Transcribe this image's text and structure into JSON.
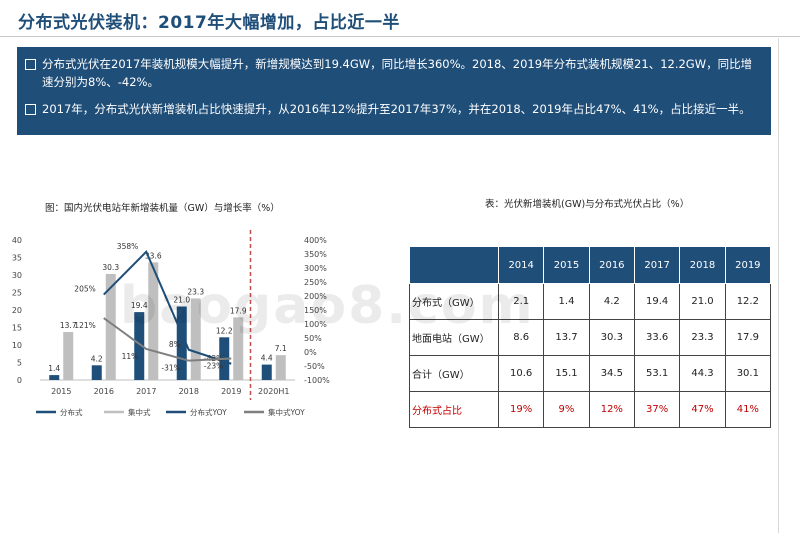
{
  "title": "分布式光伏装机：2017年大幅增加，占比近一半",
  "summary": [
    "分布式光伏在2017年装机规模大幅提升，新增规模达到19.4GW，同比增长360%。2018、2019年分布式装机规模21、12.2GW，同比增速分别为8%、-42%。",
    "2017年，分布式光伏新增装机占比快速提升，从2016年12%提升至2017年37%，并在2018、2019年占比47%、41%，占比接近一半。"
  ],
  "watermark": "baogao8.com",
  "colors": {
    "dist": "#1f4e79",
    "central": "#bfbfbf",
    "dist_yoy": "#1f4e79",
    "central_yoy": "#7f7f7f",
    "divider": "#c0504d",
    "ratio": "#c00000"
  },
  "chart_data": {
    "type": "bar",
    "title": "图：国内光伏电站年新增装机量（GW）与增长率（%）",
    "categories": [
      "2015",
      "2016",
      "2017",
      "2018",
      "2019",
      "2020H1"
    ],
    "ylim": [
      0,
      40
    ],
    "y_ticks": [
      "0",
      "5",
      "10",
      "15",
      "20",
      "25",
      "30",
      "35",
      "40"
    ],
    "y2lim": [
      -100,
      400
    ],
    "y2_ticks": [
      "-100%",
      "-50%",
      "0%",
      "50%",
      "100%",
      "150%",
      "200%",
      "250%",
      "300%",
      "350%",
      "400%"
    ],
    "series": [
      {
        "name": "分布式",
        "type": "bar",
        "values": [
          1.4,
          4.2,
          19.4,
          21.0,
          12.2,
          4.4
        ],
        "labels": [
          "1.4",
          "4.2",
          "19.4",
          "21.0",
          "12.2",
          "4.4"
        ]
      },
      {
        "name": "集中式",
        "type": "bar",
        "values": [
          13.7,
          30.3,
          33.6,
          23.3,
          17.9,
          7.1
        ],
        "labels": [
          "13.7",
          "30.3",
          "33.6",
          "23.3",
          "17.9",
          "7.1"
        ]
      },
      {
        "name": "分布式YOY",
        "type": "line",
        "axis": "right",
        "values": [
          null,
          205,
          358,
          8,
          -42,
          null
        ],
        "labels": [
          "",
          "205%",
          "358%",
          "8%",
          "-42%",
          ""
        ]
      },
      {
        "name": "集中式YOY",
        "type": "line",
        "axis": "right",
        "values": [
          null,
          121,
          11,
          -31,
          -23,
          null
        ],
        "labels": [
          "",
          "121%",
          "11%",
          "-31%",
          "-23%",
          ""
        ]
      }
    ]
  },
  "table": {
    "title": "表：光伏新增装机(GW)与分布式光伏占比（%）",
    "headers": [
      "",
      "2014",
      "2015",
      "2016",
      "2017",
      "2018",
      "2019"
    ],
    "rows": [
      {
        "label": "分布式（GW）",
        "values": [
          "2.1",
          "1.4",
          "4.2",
          "19.4",
          "21.0",
          "12.2"
        ]
      },
      {
        "label": "地面电站（GW）",
        "values": [
          "8.6",
          "13.7",
          "30.3",
          "33.6",
          "23.3",
          "17.9"
        ]
      },
      {
        "label": "合计（GW）",
        "values": [
          "10.6",
          "15.1",
          "34.5",
          "53.1",
          "44.3",
          "30.1"
        ]
      },
      {
        "label": "分布式占比",
        "values": [
          "19%",
          "9%",
          "12%",
          "37%",
          "47%",
          "41%"
        ]
      }
    ]
  }
}
